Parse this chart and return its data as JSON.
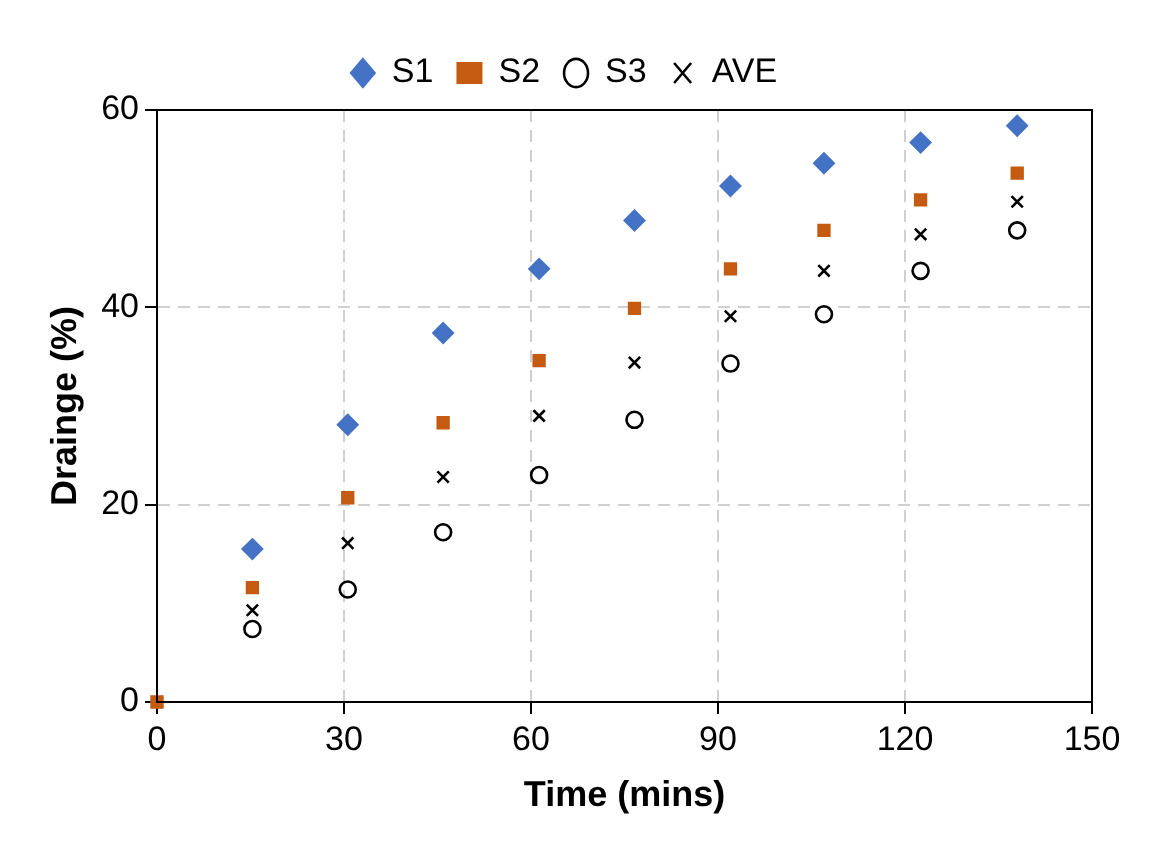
{
  "chart_data": {
    "type": "scatter",
    "xlabel": "Time (mins)",
    "ylabel": "Drainge (%)",
    "xlim": [
      0,
      150
    ],
    "xticks": [
      0,
      30,
      60,
      90,
      120,
      150
    ],
    "ylim": [
      0,
      60
    ],
    "yticks": [
      0,
      20,
      40,
      60
    ],
    "grid": true,
    "legend": "top",
    "line_style": "dashed",
    "x": [
      0,
      15.3,
      30.6,
      45.9,
      61.3,
      76.6,
      92,
      107,
      122.5,
      138
    ],
    "series": [
      {
        "name": "S1",
        "color": "#4472c4",
        "marker": "diamond",
        "values": [
          null,
          15.5,
          28.1,
          37.4,
          43.9,
          48.8,
          52.3,
          54.6,
          56.7,
          58.4
        ]
      },
      {
        "name": "S2",
        "color": "#c55a11",
        "marker": "square",
        "values": [
          0,
          11.6,
          20.7,
          28.3,
          34.6,
          39.9,
          43.9,
          47.8,
          50.9,
          53.6
        ]
      },
      {
        "name": "S3",
        "color": "#000000",
        "marker": "circle",
        "values": [
          null,
          7.4,
          11.4,
          17.2,
          23.0,
          28.6,
          34.3,
          39.3,
          43.7,
          47.8
        ]
      },
      {
        "name": "AVE",
        "color": "#000000",
        "marker": "cross",
        "values": [
          0,
          9.3,
          16.1,
          22.8,
          29.0,
          34.4,
          39.1,
          43.7,
          47.4,
          50.7
        ]
      }
    ]
  }
}
